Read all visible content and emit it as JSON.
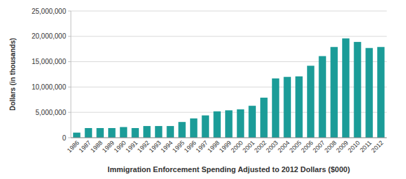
{
  "chart_data": {
    "type": "bar",
    "x_label": "Immigration Enforcement Spending Adjusted to 2012 Dollars ($000)",
    "y_label": "Dollars (in thousands)",
    "categories": [
      "1986",
      "1987",
      "1988",
      "1989",
      "1990",
      "1991",
      "1992",
      "1993",
      "1994",
      "1995",
      "1996",
      "1997",
      "1998",
      "1999",
      "2000",
      "2001",
      "2002",
      "2003",
      "2004",
      "2005",
      "2006",
      "2007",
      "2008",
      "2009",
      "2010",
      "2011",
      "2012"
    ],
    "values": [
      1000000,
      1900000,
      1900000,
      1900000,
      2100000,
      1900000,
      2300000,
      2300000,
      2300000,
      3100000,
      3800000,
      4400000,
      5200000,
      5400000,
      5600000,
      6300000,
      7900000,
      11700000,
      12000000,
      12100000,
      14200000,
      16100000,
      17900000,
      19600000,
      18900000,
      17700000,
      17900000
    ],
    "color": "#1b9c98",
    "ylim": [
      0,
      25000000
    ],
    "yticks": [
      0,
      {
        "value": 5000000,
        "label": "5,000,000"
      },
      {
        "value": 10000000,
        "label": "10,000,000"
      },
      {
        "value": 15000000,
        "label": "15,000,000"
      },
      {
        "value": 20000000,
        "label": "20,000,000"
      },
      {
        "value": 25000000,
        "label": "25,000,000"
      }
    ],
    "grid": true
  }
}
